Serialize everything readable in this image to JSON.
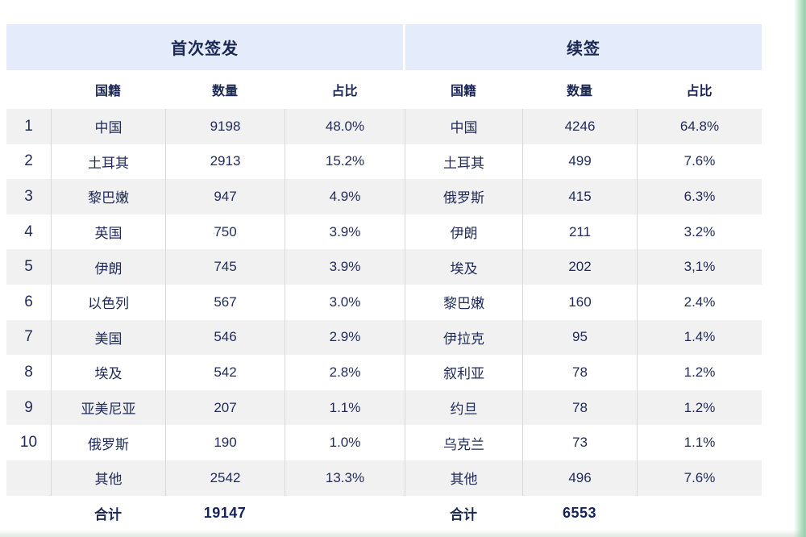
{
  "colors": {
    "header_band_bg": "#e4ebfa",
    "text_navy": "#1f2a58",
    "stripe_bg": "#f1f1f2",
    "divider": "#d8d8d8",
    "page_edge_green": "#9bd2b0"
  },
  "chart_data": [
    {
      "type": "table",
      "title": "首次签发",
      "columns": {
        "rank": "",
        "country": "国籍",
        "count": "数量",
        "share": "占比"
      },
      "rows": [
        [
          "1",
          "中国",
          "9198",
          "48.0%"
        ],
        [
          "2",
          "土耳其",
          "2913",
          "15.2%"
        ],
        [
          "3",
          "黎巴嫩",
          "947",
          "4.9%"
        ],
        [
          "4",
          "英国",
          "750",
          "3.9%"
        ],
        [
          "5",
          "伊朗",
          "745",
          "3.9%"
        ],
        [
          "6",
          "以色列",
          "567",
          "3.0%"
        ],
        [
          "7",
          "美国",
          "546",
          "2.9%"
        ],
        [
          "8",
          "埃及",
          "542",
          "2.8%"
        ],
        [
          "9",
          "亚美尼亚",
          "207",
          "1.1%"
        ],
        [
          "10",
          "俄罗斯",
          "190",
          "1.0%"
        ],
        [
          "",
          "其他",
          "2542",
          "13.3%"
        ]
      ],
      "total_label": "合计",
      "total_count": "19147"
    },
    {
      "type": "table",
      "title": "续签",
      "columns": {
        "country": "国籍",
        "count": "数量",
        "share": "占比"
      },
      "rows": [
        [
          "中国",
          "4246",
          "64.8%"
        ],
        [
          "土耳其",
          "499",
          "7.6%"
        ],
        [
          "俄罗斯",
          "415",
          "6.3%"
        ],
        [
          "伊朗",
          "211",
          "3.2%"
        ],
        [
          "埃及",
          "202",
          "3,1%"
        ],
        [
          "黎巴嫩",
          "160",
          "2.4%"
        ],
        [
          "伊拉克",
          "95",
          "1.4%"
        ],
        [
          "叙利亚",
          "78",
          "1.2%"
        ],
        [
          "约旦",
          "78",
          "1.2%"
        ],
        [
          "乌克兰",
          "73",
          "1.1%"
        ],
        [
          "其他",
          "496",
          "7.6%"
        ]
      ],
      "total_label": "合计",
      "total_count": "6553"
    }
  ]
}
